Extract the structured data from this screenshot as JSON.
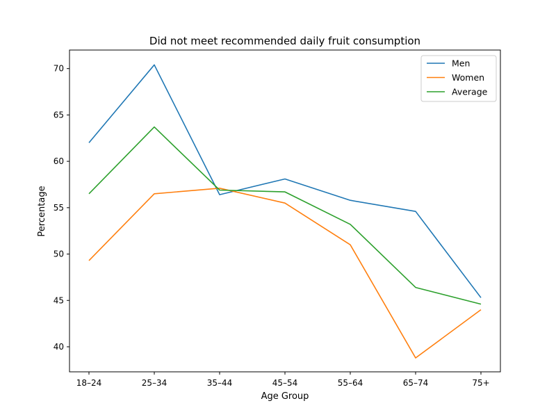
{
  "chart_data": {
    "type": "line",
    "title": "Did not meet recommended daily fruit consumption",
    "xlabel": "Age Group",
    "ylabel": "Percentage",
    "categories": [
      "18–24",
      "25–34",
      "35–44",
      "45–54",
      "55–64",
      "65–74",
      "75+"
    ],
    "ylim": [
      37.3,
      72.0
    ],
    "yticks": [
      40,
      45,
      50,
      55,
      60,
      65,
      70
    ],
    "grid": false,
    "legend_position": "top-right",
    "series": [
      {
        "name": "Men",
        "color": "#1f77b4",
        "values": [
          62.0,
          70.4,
          56.4,
          58.1,
          55.8,
          54.6,
          45.3
        ]
      },
      {
        "name": "Women",
        "color": "#ff7f0e",
        "values": [
          49.3,
          56.5,
          57.1,
          55.5,
          51.0,
          38.8,
          44.0
        ]
      },
      {
        "name": "Average",
        "color": "#2ca02c",
        "values": [
          56.5,
          63.7,
          56.9,
          56.7,
          53.2,
          46.4,
          44.6
        ]
      }
    ]
  }
}
